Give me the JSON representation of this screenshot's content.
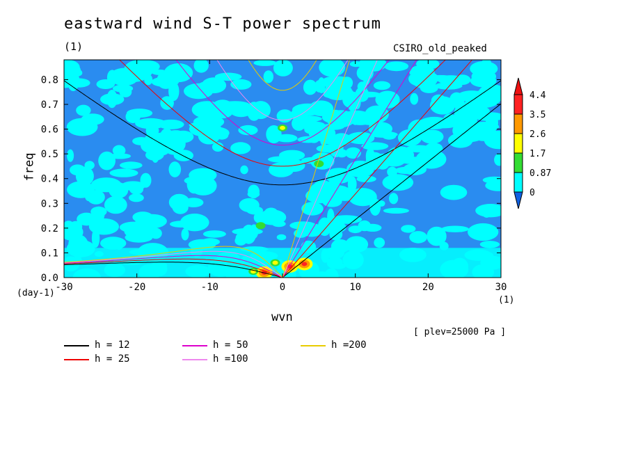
{
  "chart_data": {
    "type": "heatmap",
    "title": "eastward wind S-T power spectrum",
    "subtitle_left": "(1)",
    "subtitle_right": "CSIRO_old_peaked",
    "xlabel": "wvn",
    "ylabel": "freq",
    "x_unit": "(1)",
    "y_unit": "(day-1)",
    "footnote": "[ plev=25000 Pa ]",
    "xlim": [
      -30,
      30
    ],
    "ylim": [
      0,
      0.88
    ],
    "x_ticks": [
      -30,
      -20,
      -10,
      0,
      10,
      20,
      30
    ],
    "x_tick_labels": [
      "-30",
      "-20",
      "-10",
      "0",
      "10",
      "20",
      "30"
    ],
    "y_ticks": [
      0,
      0.1,
      0.2,
      0.3,
      0.4,
      0.5,
      0.6,
      0.7,
      0.8
    ],
    "y_tick_labels": [
      "0.0",
      "0.1",
      "0.2",
      "0.3",
      "0.4",
      "0.5",
      "0.6",
      "0.7",
      "0.8"
    ],
    "colorbar": {
      "levels": [
        "0",
        "0.87",
        "1.7",
        "2.6",
        "3.5",
        "4.4"
      ],
      "colors": [
        "#2a8cf0",
        "#00ffff",
        "#33dd33",
        "#ffff00",
        "#ff9900",
        "#ff2222"
      ],
      "under_color": "#1060e0",
      "over_color": "#ee1111"
    },
    "background_color": "#2a8cf0",
    "hotspots": [
      {
        "wvn": 3,
        "freq": 0.055,
        "level": 4.4
      },
      {
        "wvn": 1,
        "freq": 0.045,
        "level": 4.4
      },
      {
        "wvn": -2.5,
        "freq": 0.02,
        "level": 4.4
      },
      {
        "wvn": 0,
        "freq": 0.605,
        "level": 2.6
      },
      {
        "wvn": -3,
        "freq": 0.21,
        "level": 1.7
      },
      {
        "wvn": 5,
        "freq": 0.46,
        "level": 1.7
      },
      {
        "wvn": -1,
        "freq": 0.06,
        "level": 2.6
      },
      {
        "wvn": -4,
        "freq": 0.025,
        "level": 2.6
      }
    ],
    "dispersion_curves": [
      {
        "label": "h = 12",
        "h": 12,
        "color": "#000000"
      },
      {
        "label": "h = 25",
        "h": 25,
        "color": "#ee0000"
      },
      {
        "label": "h = 50",
        "h": 50,
        "color": "#dd00cc"
      },
      {
        "label": "h =100",
        "h": 100,
        "color": "#ee88ee"
      },
      {
        "label": "h =200",
        "h": 200,
        "color": "#e8cc00"
      }
    ],
    "grid": false,
    "legend_placement": "bottom-left"
  }
}
